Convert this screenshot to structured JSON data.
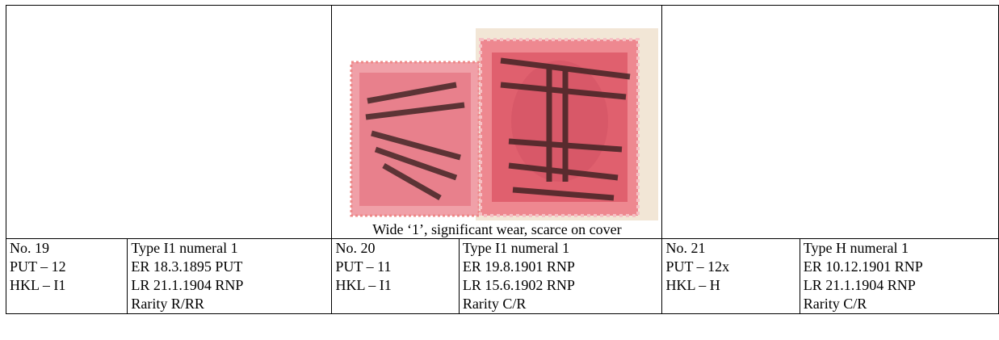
{
  "table": {
    "top_row": [
      "",
      "Wide ‘1’, significant wear, scarce on cover",
      ""
    ],
    "rows": [
      [
        [
          "No. 19",
          "PUT – 12",
          "HKL – I1"
        ],
        [
          "Type I1 numeral 1",
          "ER 18.3.1895 PUT",
          "LR 21.1.1904 RNP",
          "Rarity R/RR"
        ],
        [
          "No. 20",
          "PUT – 11",
          "HKL – I1"
        ],
        [
          "Type I1 numeral 1",
          "ER 19.8.1901 RNP",
          "LR 15.6.1902 RNP",
          "Rarity C/R"
        ],
        [
          "No. 21",
          "PUT – 12x",
          "HKL – H"
        ],
        [
          "Type H numeral 1",
          "ER 10.12.1901 RNP",
          "LR 21.1.1904 RNP",
          "Rarity C/R"
        ]
      ]
    ]
  }
}
